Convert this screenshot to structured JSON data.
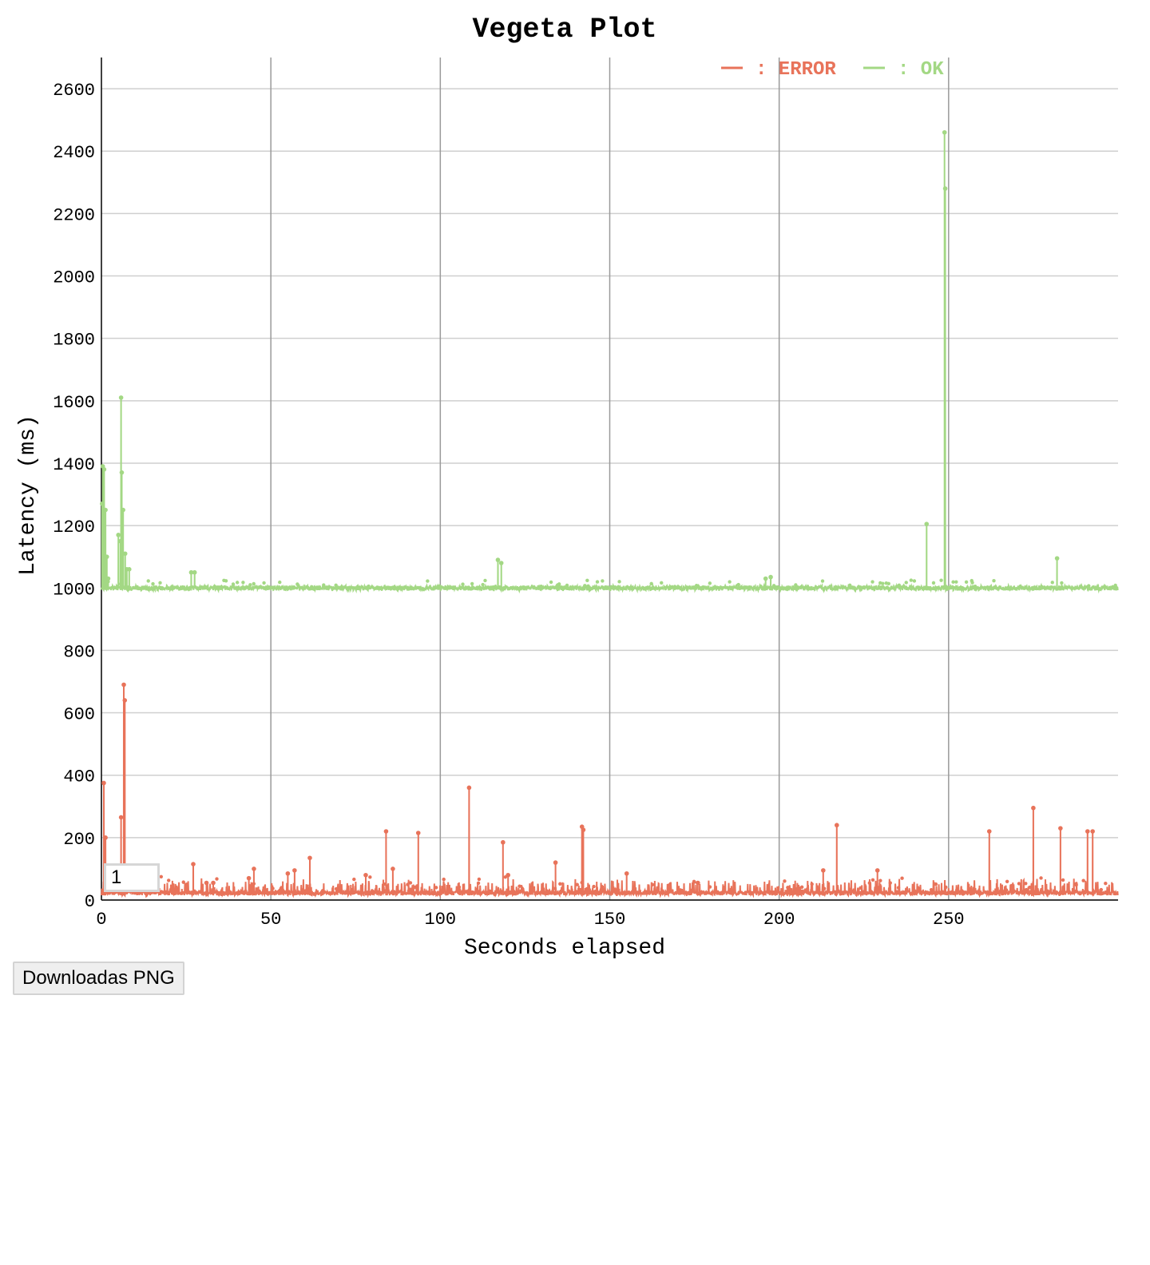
{
  "chart_data": {
    "type": "line",
    "title": "Vegeta Plot",
    "xlabel": "Seconds elapsed",
    "ylabel": "Latency (ms)",
    "xlim": [
      0,
      300
    ],
    "ylim": [
      0,
      2700
    ],
    "x_ticks": [
      0,
      50,
      100,
      150,
      200,
      250
    ],
    "y_ticks": [
      0,
      200,
      400,
      600,
      800,
      1000,
      1200,
      1400,
      1600,
      1800,
      2000,
      2200,
      2400,
      2600
    ],
    "grid": true,
    "legend_position": "top-right",
    "series": [
      {
        "name": "ERROR",
        "color": "#e8735a",
        "baseline": 15,
        "noise": 25,
        "spikes": [
          [
            0.7,
            375
          ],
          [
            1.2,
            200
          ],
          [
            5.8,
            265
          ],
          [
            6.6,
            690
          ],
          [
            6.9,
            640
          ],
          [
            27.1,
            115
          ],
          [
            31,
            55
          ],
          [
            33,
            55
          ],
          [
            43.5,
            70
          ],
          [
            45,
            100
          ],
          [
            55,
            85
          ],
          [
            57,
            95
          ],
          [
            61.5,
            135
          ],
          [
            78,
            80
          ],
          [
            84,
            220
          ],
          [
            86,
            100
          ],
          [
            93.5,
            215
          ],
          [
            108.5,
            360
          ],
          [
            118.5,
            185
          ],
          [
            120,
            80
          ],
          [
            134,
            120
          ],
          [
            141.8,
            235
          ],
          [
            142.2,
            225
          ],
          [
            155,
            85
          ],
          [
            176,
            55
          ],
          [
            213,
            95
          ],
          [
            217,
            240
          ],
          [
            229,
            95
          ],
          [
            262,
            220
          ],
          [
            275,
            295
          ],
          [
            283,
            230
          ],
          [
            291,
            220
          ],
          [
            292.5,
            220
          ]
        ]
      },
      {
        "name": "OK",
        "color": "#a3d884",
        "baseline": 1000,
        "noise": 8,
        "spikes": [
          [
            0.2,
            1270
          ],
          [
            0.4,
            1390
          ],
          [
            0.8,
            1380
          ],
          [
            1.2,
            1250
          ],
          [
            1.6,
            1100
          ],
          [
            2.0,
            1030
          ],
          [
            5.0,
            1170
          ],
          [
            5.6,
            1150
          ],
          [
            5.8,
            1610
          ],
          [
            6.0,
            1370
          ],
          [
            6.4,
            1250
          ],
          [
            7.0,
            1110
          ],
          [
            7.5,
            1060
          ],
          [
            8.2,
            1060
          ],
          [
            26.5,
            1050
          ],
          [
            27.5,
            1050
          ],
          [
            117,
            1090
          ],
          [
            118,
            1080
          ],
          [
            196,
            1030
          ],
          [
            197.5,
            1035
          ],
          [
            243.5,
            1205
          ],
          [
            248.8,
            2460
          ],
          [
            249,
            2280
          ],
          [
            282,
            1095
          ]
        ]
      }
    ]
  },
  "legend": {
    "error_label": ": ERROR",
    "ok_label": ": OK"
  },
  "range_input": {
    "value": "1"
  },
  "download_button": {
    "label": "Downloadas PNG"
  }
}
